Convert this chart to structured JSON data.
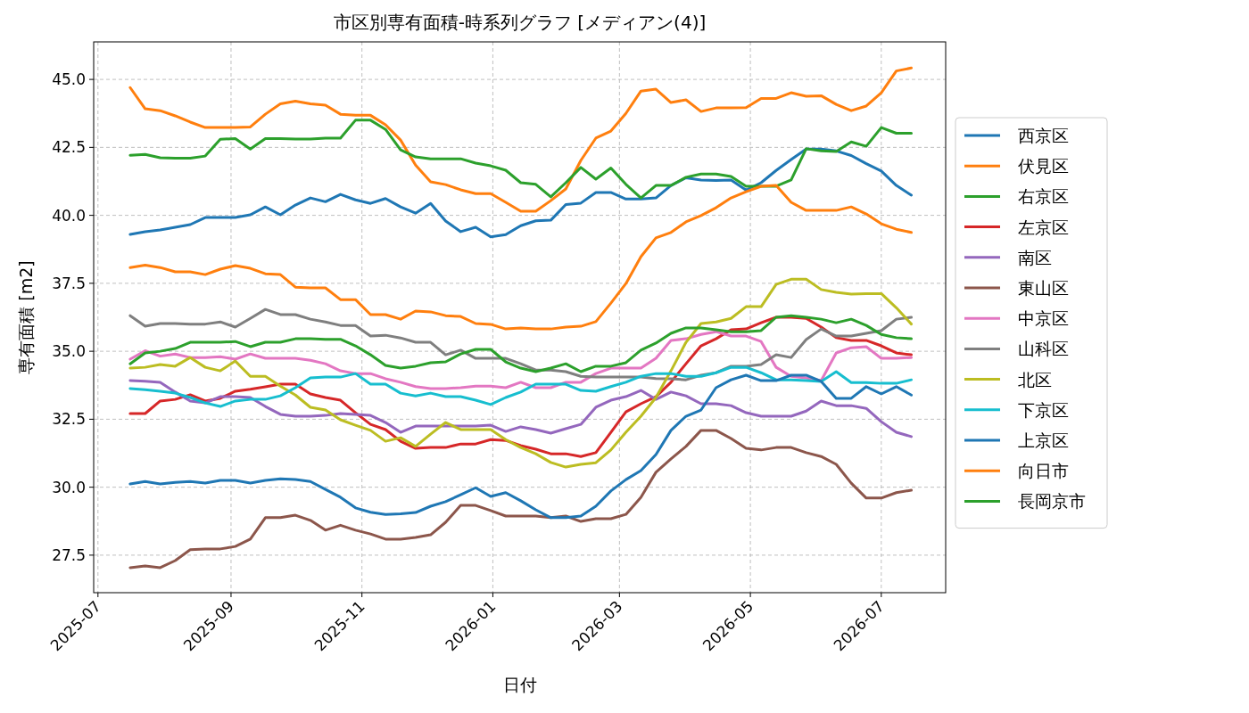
{
  "chart_data": {
    "type": "line",
    "title": "市区別専有面積-時系列グラフ [メディアン(4)]",
    "xlabel": "日付",
    "ylabel": "専有面積 [m2]",
    "x": [
      "2025-07-16",
      "2025-07-23",
      "2025-07-30",
      "2025-08-06",
      "2025-08-13",
      "2025-08-20",
      "2025-08-27",
      "2025-09-03",
      "2025-09-10",
      "2025-09-17",
      "2025-09-24",
      "2025-10-01",
      "2025-10-08",
      "2025-10-15",
      "2025-10-22",
      "2025-10-29",
      "2025-11-05",
      "2025-11-12",
      "2025-11-19",
      "2025-11-26",
      "2025-12-03",
      "2025-12-10",
      "2025-12-17",
      "2025-12-24",
      "2025-12-31",
      "2026-01-07",
      "2026-01-14",
      "2026-01-21",
      "2026-01-28",
      "2026-02-04",
      "2026-02-11",
      "2026-02-18",
      "2026-02-25",
      "2026-03-04",
      "2026-03-11",
      "2026-03-18",
      "2026-03-25",
      "2026-04-01",
      "2026-04-08",
      "2026-04-15",
      "2026-04-22",
      "2026-04-29",
      "2026-05-06",
      "2026-05-13",
      "2026-05-20",
      "2026-05-27",
      "2026-06-03",
      "2026-06-10",
      "2026-06-17",
      "2026-06-24",
      "2026-07-01",
      "2026-07-08",
      "2026-07-15"
    ],
    "xlim": [
      "2025-06-29",
      "2026-07-31"
    ],
    "xticks": [
      {
        "value": "2025-07-01",
        "label": "2025-07"
      },
      {
        "value": "2025-09-01",
        "label": "2025-09"
      },
      {
        "value": "2025-11-01",
        "label": "2025-11"
      },
      {
        "value": "2026-01-01",
        "label": "2026-01"
      },
      {
        "value": "2026-03-01",
        "label": "2026-03"
      },
      {
        "value": "2026-05-01",
        "label": "2026-05"
      },
      {
        "value": "2026-07-01",
        "label": "2026-07"
      }
    ],
    "ylim": [
      26.12,
      46.38
    ],
    "yticks": [
      27.5,
      {
        "value": 30,
        "label": "30.0"
      },
      32.5,
      {
        "value": 35,
        "label": "35.0"
      },
      37.5,
      {
        "value": 40,
        "label": "40.0"
      },
      42.5,
      {
        "value": 45,
        "label": "45.0"
      }
    ],
    "grid": true,
    "legend": "right",
    "marker": "none",
    "line_style": "solid",
    "series": [
      {
        "name": "西京区",
        "color": "#1f77b4",
        "values": [
          39.3,
          39.4,
          39.46,
          39.56,
          39.66,
          39.92,
          39.92,
          39.92,
          40.02,
          40.31,
          40.02,
          40.38,
          40.64,
          40.5,
          40.77,
          40.57,
          40.44,
          40.62,
          40.31,
          40.08,
          40.44,
          39.79,
          39.4,
          39.56,
          39.21,
          39.29,
          39.62,
          39.8,
          39.82,
          40.4,
          40.45,
          40.84,
          40.84,
          40.6,
          40.6,
          40.64,
          41.1,
          41.38,
          41.3,
          41.28,
          41.3,
          40.93,
          41.2,
          41.65,
          42.05,
          42.44,
          42.44,
          42.37,
          42.2,
          41.9,
          41.63,
          41.1,
          40.74
        ]
      },
      {
        "name": "伏見区",
        "color": "#ff7f0e",
        "values": [
          44.7,
          43.92,
          43.85,
          43.66,
          43.43,
          43.23,
          43.23,
          43.23,
          43.25,
          43.72,
          44.1,
          44.2,
          44.1,
          44.05,
          43.72,
          43.68,
          43.68,
          43.33,
          42.77,
          41.85,
          41.23,
          41.13,
          40.94,
          40.8,
          40.8,
          40.48,
          40.15,
          40.15,
          40.54,
          40.97,
          42.02,
          42.84,
          43.1,
          43.75,
          44.57,
          44.64,
          44.15,
          44.25,
          43.82,
          43.95,
          43.95,
          43.96,
          44.3,
          44.3,
          44.51,
          44.38,
          44.4,
          44.08,
          43.85,
          44.02,
          44.51,
          45.31,
          45.42
        ]
      },
      {
        "name": "右京区",
        "color": "#2ca02c",
        "values": [
          42.21,
          42.24,
          42.12,
          42.1,
          42.1,
          42.18,
          42.8,
          42.82,
          42.44,
          42.82,
          42.82,
          42.81,
          42.81,
          42.84,
          42.84,
          43.5,
          43.5,
          43.16,
          42.41,
          42.15,
          42.08,
          42.08,
          42.08,
          41.92,
          41.82,
          41.66,
          41.2,
          41.14,
          40.68,
          41.2,
          41.76,
          41.33,
          41.74,
          41.14,
          40.64,
          41.1,
          41.1,
          41.4,
          41.52,
          41.52,
          41.43,
          41.07,
          41.07,
          41.07,
          41.3,
          42.45,
          42.37,
          42.35,
          42.7,
          42.54,
          43.23,
          43.02,
          43.02
        ]
      },
      {
        "name": "左京区",
        "color": "#d62728",
        "values": [
          32.71,
          32.71,
          33.17,
          33.23,
          33.4,
          33.17,
          33.27,
          33.53,
          33.6,
          33.69,
          33.79,
          33.79,
          33.43,
          33.3,
          33.2,
          32.74,
          32.31,
          32.12,
          31.69,
          31.43,
          31.46,
          31.46,
          31.59,
          31.59,
          31.75,
          31.72,
          31.53,
          31.4,
          31.23,
          31.23,
          31.13,
          31.27,
          32.02,
          32.77,
          33.07,
          33.33,
          33.86,
          34.54,
          35.2,
          35.46,
          35.79,
          35.82,
          36.05,
          36.25,
          36.25,
          36.21,
          35.89,
          35.5,
          35.4,
          35.4,
          35.2,
          34.94,
          34.87
        ]
      },
      {
        "name": "南区",
        "color": "#9467bd",
        "values": [
          33.92,
          33.9,
          33.86,
          33.5,
          33.17,
          33.1,
          33.33,
          33.33,
          33.3,
          32.97,
          32.68,
          32.61,
          32.61,
          32.64,
          32.71,
          32.68,
          32.64,
          32.38,
          32.02,
          32.25,
          32.25,
          32.25,
          32.25,
          32.25,
          32.28,
          32.05,
          32.22,
          32.12,
          31.99,
          32.15,
          32.31,
          32.94,
          33.2,
          33.33,
          33.56,
          33.23,
          33.5,
          33.36,
          33.07,
          33.07,
          33.0,
          32.74,
          32.61,
          32.61,
          32.61,
          32.8,
          33.17,
          33.0,
          33.0,
          32.9,
          32.41,
          32.02,
          31.86
        ]
      },
      {
        "name": "東山区",
        "color": "#8c564b",
        "values": [
          27.04,
          27.1,
          27.04,
          27.3,
          27.7,
          27.73,
          27.73,
          27.82,
          28.09,
          28.88,
          28.88,
          28.97,
          28.78,
          28.42,
          28.6,
          28.42,
          28.28,
          28.09,
          28.09,
          28.15,
          28.25,
          28.71,
          29.33,
          29.33,
          29.14,
          28.94,
          28.94,
          28.94,
          28.88,
          28.94,
          28.74,
          28.84,
          28.84,
          29.0,
          29.63,
          30.55,
          31.04,
          31.5,
          32.09,
          32.09,
          31.79,
          31.43,
          31.37,
          31.46,
          31.46,
          31.27,
          31.13,
          30.84,
          30.15,
          29.6,
          29.6,
          29.8,
          29.89
        ]
      },
      {
        "name": "中京区",
        "color": "#e377c2",
        "values": [
          34.71,
          35.02,
          34.82,
          34.9,
          34.77,
          34.77,
          34.8,
          34.71,
          34.9,
          34.74,
          34.74,
          34.74,
          34.67,
          34.54,
          34.28,
          34.18,
          34.18,
          33.99,
          33.86,
          33.7,
          33.63,
          33.63,
          33.66,
          33.72,
          33.72,
          33.66,
          33.86,
          33.66,
          33.66,
          33.86,
          33.86,
          34.18,
          34.38,
          34.38,
          34.38,
          34.74,
          35.4,
          35.46,
          35.62,
          35.72,
          35.56,
          35.56,
          35.36,
          34.41,
          34.08,
          34.02,
          33.92,
          34.94,
          35.13,
          35.17,
          34.74,
          34.74,
          34.77
        ]
      },
      {
        "name": "山科区",
        "color": "#7f7f7f",
        "values": [
          36.31,
          35.92,
          36.02,
          36.02,
          36.0,
          36.0,
          36.08,
          35.89,
          36.21,
          36.54,
          36.35,
          36.35,
          36.18,
          36.08,
          35.95,
          35.95,
          35.56,
          35.59,
          35.49,
          35.33,
          35.33,
          34.87,
          35.04,
          34.74,
          34.74,
          34.74,
          34.54,
          34.31,
          34.31,
          34.25,
          34.08,
          34.05,
          34.05,
          34.05,
          34.05,
          34.0,
          33.99,
          33.95,
          34.12,
          34.21,
          34.45,
          34.45,
          34.51,
          34.87,
          34.77,
          35.43,
          35.82,
          35.56,
          35.56,
          35.66,
          35.76,
          36.18,
          36.25
        ]
      },
      {
        "name": "北区",
        "color": "#bcbd22",
        "values": [
          34.38,
          34.41,
          34.51,
          34.45,
          34.77,
          34.41,
          34.28,
          34.64,
          34.08,
          34.08,
          33.72,
          33.39,
          32.94,
          32.84,
          32.48,
          32.28,
          32.09,
          31.69,
          31.82,
          31.5,
          31.95,
          32.38,
          32.12,
          32.12,
          32.12,
          31.75,
          31.46,
          31.23,
          30.91,
          30.74,
          30.84,
          30.9,
          31.37,
          32.02,
          32.61,
          33.3,
          34.28,
          35.33,
          36.02,
          36.08,
          36.21,
          36.64,
          36.64,
          37.46,
          37.65,
          37.65,
          37.27,
          37.17,
          37.1,
          37.12,
          37.12,
          36.6,
          36.0
        ]
      },
      {
        "name": "下京区",
        "color": "#17becf",
        "values": [
          33.63,
          33.59,
          33.53,
          33.46,
          33.3,
          33.1,
          32.97,
          33.17,
          33.23,
          33.23,
          33.36,
          33.66,
          34.02,
          34.05,
          34.05,
          34.18,
          33.79,
          33.79,
          33.46,
          33.36,
          33.46,
          33.33,
          33.33,
          33.2,
          33.04,
          33.3,
          33.5,
          33.79,
          33.79,
          33.79,
          33.56,
          33.53,
          33.7,
          33.86,
          34.08,
          34.18,
          34.18,
          34.08,
          34.08,
          34.21,
          34.41,
          34.41,
          34.21,
          33.95,
          33.95,
          33.92,
          33.89,
          34.25,
          33.85,
          33.85,
          33.82,
          33.82,
          33.95
        ]
      },
      {
        "name": "上京区",
        "color": "#1f77b4",
        "values": [
          30.12,
          30.21,
          30.12,
          30.18,
          30.21,
          30.15,
          30.25,
          30.25,
          30.15,
          30.25,
          30.31,
          30.28,
          30.21,
          29.92,
          29.63,
          29.24,
          29.08,
          29.0,
          29.02,
          29.07,
          29.3,
          29.47,
          29.72,
          29.98,
          29.66,
          29.8,
          29.5,
          29.17,
          28.88,
          28.88,
          28.94,
          29.3,
          29.86,
          30.28,
          30.61,
          31.2,
          32.09,
          32.61,
          32.84,
          33.66,
          33.95,
          34.12,
          33.92,
          33.92,
          34.12,
          34.12,
          33.89,
          33.27,
          33.27,
          33.7,
          33.43,
          33.7,
          33.39
        ]
      },
      {
        "name": "向日市",
        "color": "#ff7f0e",
        "values": [
          38.08,
          38.17,
          38.08,
          37.92,
          37.92,
          37.82,
          38.02,
          38.15,
          38.05,
          37.85,
          37.82,
          37.36,
          37.33,
          37.33,
          36.9,
          36.9,
          36.35,
          36.35,
          36.18,
          36.48,
          36.45,
          36.31,
          36.28,
          36.02,
          35.99,
          35.82,
          35.86,
          35.82,
          35.82,
          35.89,
          35.92,
          36.09,
          36.77,
          37.49,
          38.48,
          39.17,
          39.37,
          39.76,
          39.99,
          40.28,
          40.64,
          40.87,
          41.07,
          41.1,
          40.48,
          40.18,
          40.18,
          40.18,
          40.31,
          40.05,
          39.69,
          39.49,
          39.37
        ]
      },
      {
        "name": "長岡京市",
        "color": "#2ca02c",
        "values": [
          34.54,
          34.94,
          35.0,
          35.1,
          35.33,
          35.33,
          35.33,
          35.36,
          35.17,
          35.33,
          35.33,
          35.46,
          35.46,
          35.44,
          35.44,
          35.2,
          34.87,
          34.48,
          34.38,
          34.45,
          34.58,
          34.61,
          34.9,
          35.07,
          35.07,
          34.61,
          34.38,
          34.25,
          34.38,
          34.54,
          34.25,
          34.45,
          34.45,
          34.58,
          35.04,
          35.3,
          35.66,
          35.86,
          35.86,
          35.79,
          35.72,
          35.72,
          35.76,
          36.25,
          36.31,
          36.25,
          36.18,
          36.05,
          36.18,
          35.95,
          35.62,
          35.5,
          35.46
        ]
      }
    ]
  }
}
